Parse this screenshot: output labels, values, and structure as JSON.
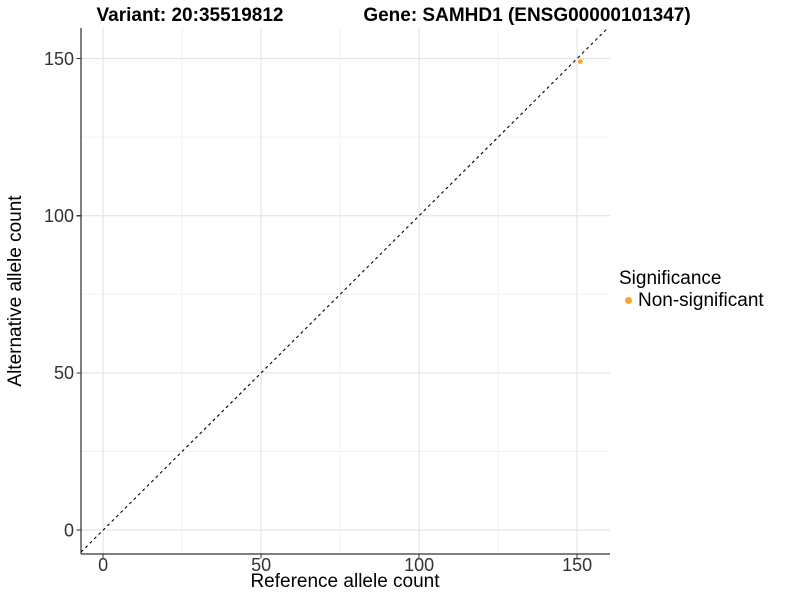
{
  "figure": {
    "background": "#ffffff"
  },
  "chart_data": {
    "type": "scatter",
    "titles": {
      "left": "Variant: 20:35519812",
      "right": "Gene: SAMHD1 (ENSG00000101347)"
    },
    "xlabel": "Reference allele count",
    "ylabel": "Alternative allele count",
    "xlim": [
      -7,
      160.4
    ],
    "ylim": [
      -7.6,
      159.7
    ],
    "xticks": [
      0,
      50,
      100,
      150
    ],
    "yticks": [
      0,
      50,
      100,
      150
    ],
    "minor_xticks": [
      25,
      75,
      125
    ],
    "minor_yticks": [
      25,
      75,
      125
    ],
    "grid": "major+minor",
    "identity_line": {
      "slope": 1,
      "intercept": 0,
      "style": "dashed",
      "color": "#000000"
    },
    "series": [
      {
        "name": "Non-significant",
        "color": "#F9A42C",
        "points": [
          {
            "x": 151,
            "y": 149
          }
        ]
      }
    ],
    "legend": {
      "title": "Significance",
      "position": "right",
      "items": [
        {
          "label": "Non-significant",
          "color": "#F9A42C"
        }
      ]
    }
  }
}
